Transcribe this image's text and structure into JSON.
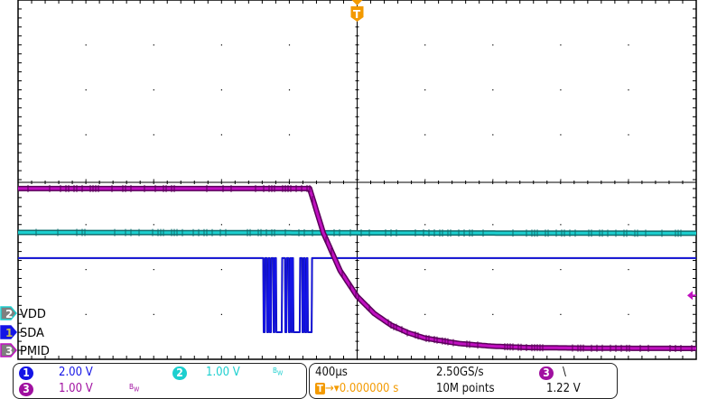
{
  "chart_data": {
    "type": "line",
    "title": "",
    "xlabel": "",
    "ylabel": "",
    "x_unit": "ms",
    "xlim": [
      -2.0,
      2.0
    ],
    "divisions": {
      "horizontal": 10,
      "vertical": 8
    },
    "grid": true,
    "series": [
      {
        "name": "VDD",
        "channel": "2",
        "color": "#1ccfcf",
        "volts_per_div": 1.0,
        "points": [
          [
            -2.0,
            1.8
          ],
          [
            2.0,
            1.78
          ]
        ]
      },
      {
        "name": "SDA",
        "channel": "1",
        "color": "#1414e6",
        "volts_per_div": 2.0,
        "high": 3.3,
        "low": 0.0,
        "low_intervals": [
          [
            -0.554,
            -0.543
          ],
          [
            -0.533,
            -0.522
          ],
          [
            -0.517,
            -0.506
          ],
          [
            -0.495,
            -0.485
          ],
          [
            -0.479,
            -0.442
          ],
          [
            -0.426,
            -0.415
          ],
          [
            -0.405,
            -0.394
          ],
          [
            -0.389,
            -0.383
          ],
          [
            -0.378,
            -0.336
          ],
          [
            -0.325,
            -0.314
          ],
          [
            -0.309,
            -0.298
          ],
          [
            -0.293,
            -0.266
          ]
        ]
      },
      {
        "name": "PMID",
        "channel": "3",
        "color": "#c010c0",
        "volts_per_div": 1.0,
        "points": [
          [
            -2.0,
            3.6
          ],
          [
            -0.28,
            3.6
          ],
          [
            -0.2,
            2.62
          ],
          [
            -0.1,
            1.77
          ],
          [
            0.0,
            1.2
          ],
          [
            0.1,
            0.82
          ],
          [
            0.2,
            0.56
          ],
          [
            0.3,
            0.39
          ],
          [
            0.4,
            0.27
          ],
          [
            0.6,
            0.15
          ],
          [
            0.8,
            0.09
          ],
          [
            1.0,
            0.06
          ],
          [
            1.4,
            0.045
          ],
          [
            2.0,
            0.04
          ]
        ]
      }
    ],
    "ground_markers": [
      {
        "channel": "2",
        "label": "VDD",
        "color": "#1ccfcf",
        "volts": -1.8
      },
      {
        "channel": "1",
        "label": "SDA",
        "color": "#1414e6",
        "volts": -3.3
      },
      {
        "channel": "3",
        "label": "PMID",
        "color": "#c010c0",
        "volts": 0.0
      }
    ],
    "trigger": {
      "marker": "T",
      "time": 0.0,
      "level_volts": 1.22,
      "channel": "3",
      "slope": "falling"
    }
  },
  "channels_panel": {
    "ch1": {
      "num": "1",
      "scale": "2.00 V",
      "color": "#1414e6"
    },
    "ch2": {
      "num": "2",
      "scale": "1.00 V",
      "bw": "B",
      "bw_sub": "W",
      "color": "#1ccfcf"
    },
    "ch3": {
      "num": "3",
      "scale": "1.00 V",
      "bw": "B",
      "bw_sub": "W",
      "color": "#a010a0"
    }
  },
  "timebase_panel": {
    "time_per_div": "400µs",
    "sample_rate": "2.50GS/s",
    "trigger_icon": "T",
    "trigger_position": "0.000000 s",
    "record_length": "10M points",
    "trigger_channel": "3",
    "trigger_slope_symbol": "\\",
    "trigger_level": "1.22 V",
    "trigger_color": "#f39a00"
  }
}
